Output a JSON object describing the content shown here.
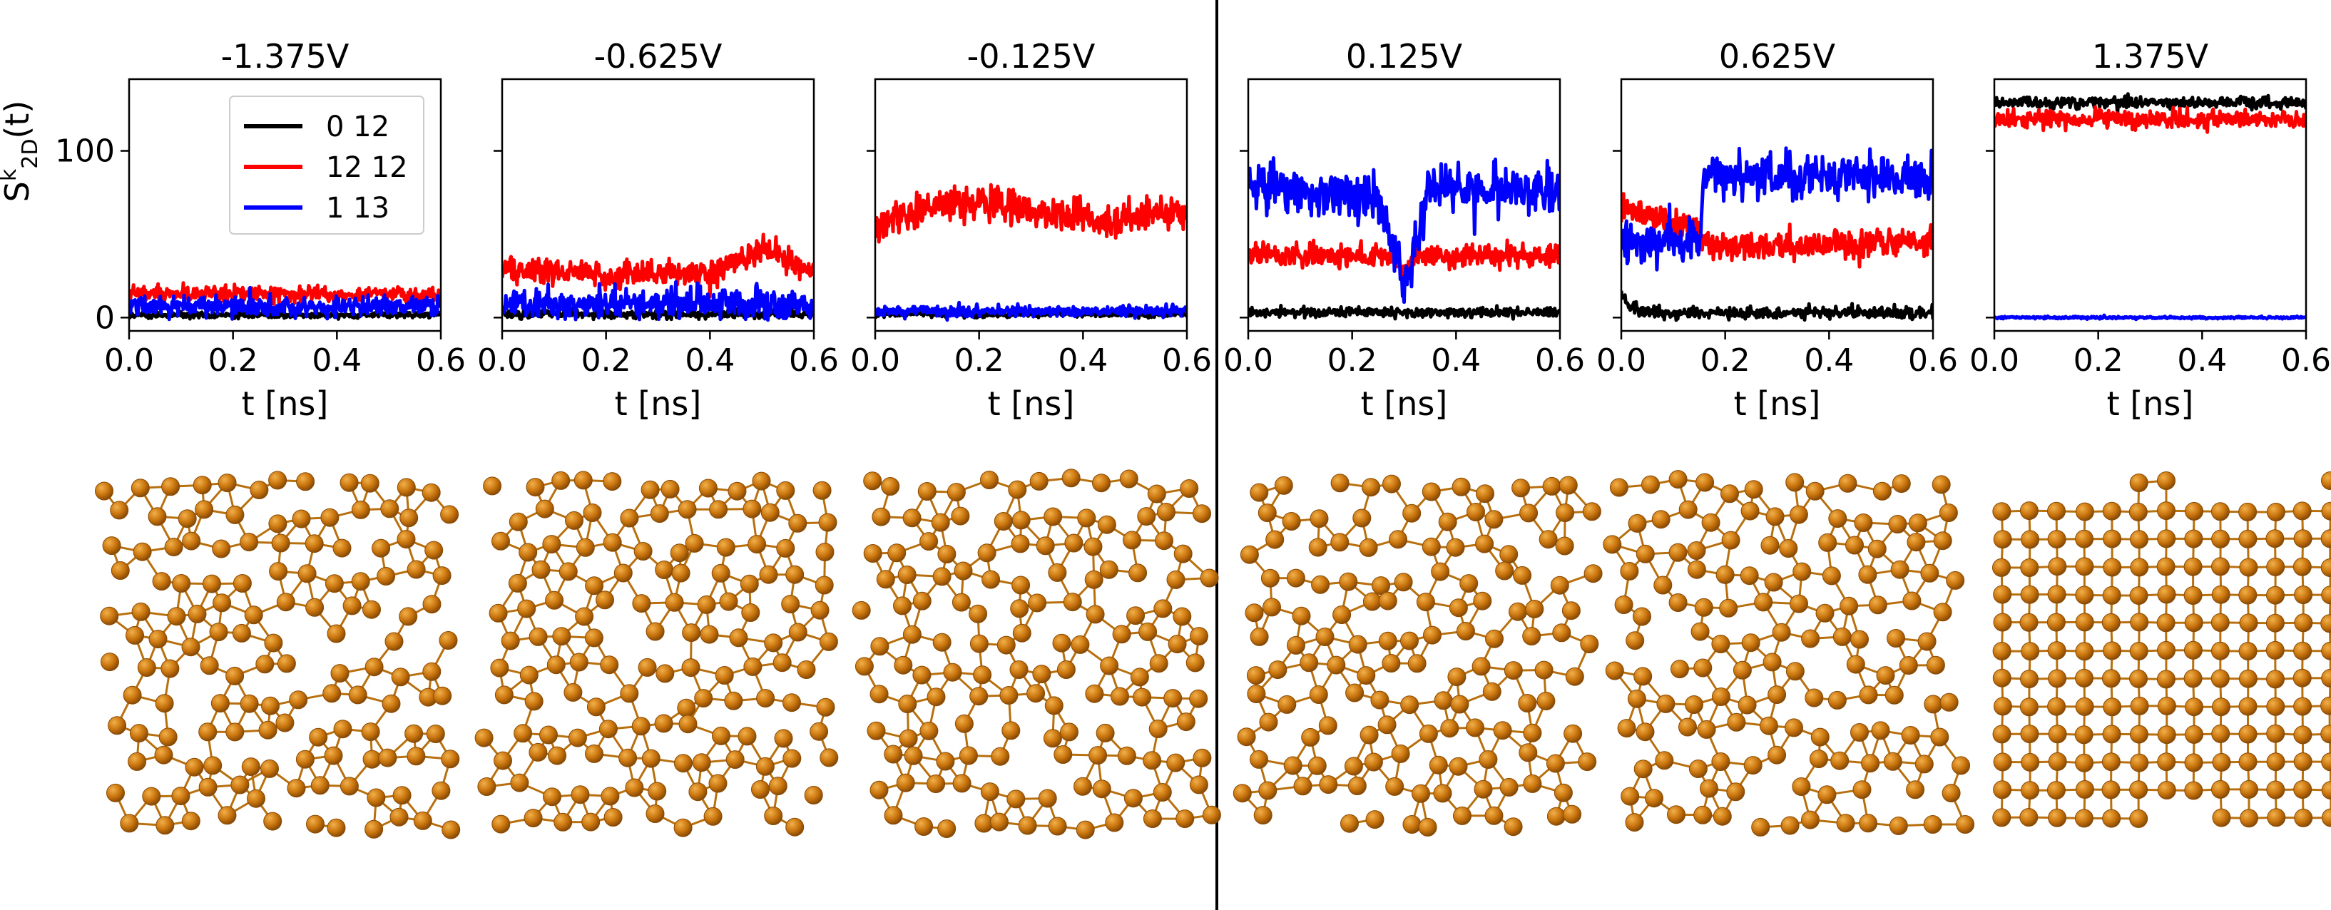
{
  "figure": {
    "ylabel_main": "S",
    "ylabel_sup": "k",
    "ylabel_sub": "2D",
    "ylabel_tail": "(t)"
  },
  "colors": {
    "series_0_12": "#000000",
    "series_12_12": "#ff0000",
    "series_1_13": "#0000ff",
    "atom": "#c8730c",
    "atom_highlight": "#f2b04a",
    "atom_edge": "#8a4b05",
    "bond": "#b8700f"
  },
  "chart_data": [
    {
      "type": "line",
      "title": "-1.375V",
      "xlabel": "t [ns]",
      "xlim": [
        0.0,
        0.6
      ],
      "ylim": [
        -8,
        143
      ],
      "xticks": [
        "0.0",
        "0.2",
        "0.4",
        "0.6"
      ],
      "yticks": [
        "0",
        "100"
      ],
      "legend": {
        "position": "top-left",
        "entries": [
          "0 12",
          "12 12",
          "1 13"
        ]
      },
      "series": [
        {
          "name": "0 12",
          "mean": 1.5,
          "noise": 1.5
        },
        {
          "name": "12 12",
          "mean": 14,
          "noise": 4
        },
        {
          "name": "1 13",
          "mean": 7,
          "noise": 5
        }
      ]
    },
    {
      "type": "line",
      "title": "-0.625V",
      "xlabel": "t [ns]",
      "xlim": [
        0.0,
        0.6
      ],
      "ylim": [
        -8,
        143
      ],
      "xticks": [
        "0.0",
        "0.2",
        "0.4",
        "0.6"
      ],
      "yticks": [
        "0",
        "100"
      ],
      "series": [
        {
          "name": "0 12",
          "mean": 2,
          "noise": 2
        },
        {
          "name": "12 12",
          "mean": 27,
          "noise": 7,
          "trend": [
            [
              0.0,
              30
            ],
            [
              0.2,
              25
            ],
            [
              0.4,
              27
            ],
            [
              0.5,
              42
            ],
            [
              0.6,
              28
            ]
          ]
        },
        {
          "name": "1 13",
          "mean": 8,
          "noise": 8
        }
      ]
    },
    {
      "type": "line",
      "title": "-0.125V",
      "xlabel": "t [ns]",
      "xlim": [
        0.0,
        0.6
      ],
      "ylim": [
        -8,
        143
      ],
      "xticks": [
        "0.0",
        "0.2",
        "0.4",
        "0.6"
      ],
      "yticks": [
        "0",
        "100"
      ],
      "series": [
        {
          "name": "0 12",
          "mean": 2,
          "noise": 1.5
        },
        {
          "name": "12 12",
          "mean": 62,
          "noise": 9,
          "trend": [
            [
              0.0,
              55
            ],
            [
              0.15,
              70
            ],
            [
              0.35,
              62
            ],
            [
              0.45,
              58
            ],
            [
              0.6,
              65
            ]
          ]
        },
        {
          "name": "1 13",
          "mean": 4,
          "noise": 3
        }
      ]
    },
    {
      "type": "line",
      "title": "0.125V",
      "xlabel": "t [ns]",
      "xlim": [
        0.0,
        0.6
      ],
      "ylim": [
        -8,
        143
      ],
      "xticks": [
        "0.0",
        "0.2",
        "0.4",
        "0.6"
      ],
      "yticks": [
        "0",
        "100"
      ],
      "series": [
        {
          "name": "0 12",
          "mean": 3,
          "noise": 2.5
        },
        {
          "name": "12 12",
          "mean": 37,
          "noise": 6,
          "trend": [
            [
              0.0,
              38
            ],
            [
              0.28,
              36
            ],
            [
              0.3,
              28
            ],
            [
              0.33,
              37
            ],
            [
              0.6,
              37
            ]
          ]
        },
        {
          "name": "1 13",
          "mean": 75,
          "noise": 12,
          "trend": [
            [
              0.0,
              78
            ],
            [
              0.25,
              72
            ],
            [
              0.3,
              18
            ],
            [
              0.35,
              80
            ],
            [
              0.6,
              75
            ]
          ]
        }
      ]
    },
    {
      "type": "line",
      "title": "0.625V",
      "xlabel": "t [ns]",
      "xlim": [
        0.0,
        0.6
      ],
      "ylim": [
        -8,
        143
      ],
      "xticks": [
        "0.0",
        "0.2",
        "0.4",
        "0.6"
      ],
      "yticks": [
        "0",
        "100"
      ],
      "series": [
        {
          "name": "0 12",
          "mean": 3,
          "noise": 3,
          "trend": [
            [
              0.0,
              14
            ],
            [
              0.02,
              6
            ],
            [
              0.05,
              3
            ],
            [
              0.6,
              3
            ]
          ]
        },
        {
          "name": "12 12",
          "mean": 46,
          "noise": 7,
          "trend": [
            [
              0.0,
              66
            ],
            [
              0.15,
              52
            ],
            [
              0.17,
              42
            ],
            [
              0.6,
              45
            ]
          ]
        },
        {
          "name": "1 13",
          "mean": 80,
          "noise": 11,
          "trend": [
            [
              0.0,
              45
            ],
            [
              0.15,
              45
            ],
            [
              0.16,
              85
            ],
            [
              0.45,
              85
            ],
            [
              0.6,
              82
            ]
          ]
        }
      ]
    },
    {
      "type": "line",
      "title": "1.375V",
      "xlabel": "t [ns]",
      "xlim": [
        0.0,
        0.6
      ],
      "ylim": [
        -8,
        143
      ],
      "xticks": [
        "0.0",
        "0.2",
        "0.4",
        "0.6"
      ],
      "yticks": [
        "0",
        "100"
      ],
      "series": [
        {
          "name": "0 12",
          "mean": 129,
          "noise": 3
        },
        {
          "name": "12 12",
          "mean": 119,
          "noise": 5
        },
        {
          "name": "1 13",
          "mean": 0,
          "noise": 0.6
        }
      ]
    }
  ],
  "snapshots": [
    {
      "voltage": "-1.375V",
      "lattice": "disordered"
    },
    {
      "voltage": "-0.625V",
      "lattice": "disordered"
    },
    {
      "voltage": "-0.125V",
      "lattice": "disordered"
    },
    {
      "voltage": "0.125V",
      "lattice": "disordered"
    },
    {
      "voltage": "0.625V",
      "lattice": "disordered"
    },
    {
      "voltage": "1.375V",
      "lattice": "square"
    }
  ]
}
